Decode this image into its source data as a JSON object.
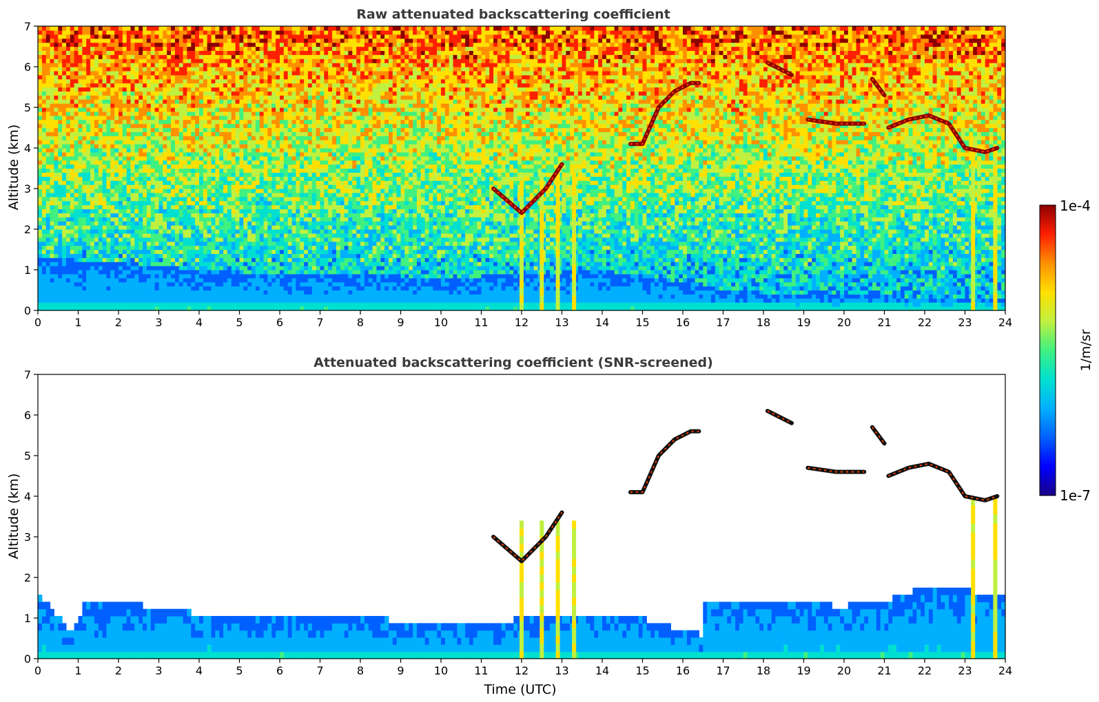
{
  "chart_data": [
    {
      "type": "heatmap",
      "title": "Raw attenuated backscattering coefficient",
      "xlabel": "",
      "ylabel": "Altitude (km)",
      "xlim": [
        0,
        24
      ],
      "ylim": [
        0,
        7
      ],
      "x_ticks": [
        "0",
        "1",
        "2",
        "3",
        "4",
        "5",
        "6",
        "7",
        "8",
        "9",
        "10",
        "11",
        "12",
        "13",
        "14",
        "15",
        "16",
        "17",
        "18",
        "19",
        "20",
        "21",
        "22",
        "23",
        "24"
      ],
      "y_ticks": [
        "0",
        "1",
        "2",
        "3",
        "4",
        "5",
        "6",
        "7"
      ],
      "features": {
        "boundary_layer_top_km": [
          [
            0,
            1.3
          ],
          [
            2,
            1.2
          ],
          [
            4,
            1.0
          ],
          [
            6,
            0.9
          ],
          [
            8,
            0.9
          ],
          [
            10,
            0.8
          ],
          [
            12,
            0.9
          ],
          [
            14,
            1.0
          ],
          [
            16,
            0.7
          ],
          [
            17,
            0.5
          ],
          [
            19,
            0.4
          ],
          [
            21,
            0.4
          ],
          [
            22,
            0.3
          ],
          [
            24,
            0.3
          ]
        ],
        "clouds": [
          {
            "x": [
              11.3,
              12.0,
              12.6,
              13.0
            ],
            "y": [
              3.0,
              2.4,
              3.0,
              3.6
            ]
          },
          {
            "x": [
              14.7,
              15.0,
              15.4,
              15.8,
              16.2,
              16.4
            ],
            "y": [
              4.1,
              4.1,
              5.0,
              5.4,
              5.6,
              5.6
            ]
          },
          {
            "x": [
              18.1,
              18.7
            ],
            "y": [
              6.1,
              5.8
            ]
          },
          {
            "x": [
              19.1,
              19.8,
              20.5
            ],
            "y": [
              4.7,
              4.6,
              4.6
            ]
          },
          {
            "x": [
              21.1,
              21.6,
              22.1,
              22.6,
              23.0,
              23.5,
              23.8
            ],
            "y": [
              4.5,
              4.7,
              4.8,
              4.6,
              4.0,
              3.9,
              4.0
            ]
          },
          {
            "x": [
              20.7,
              21.0
            ],
            "y": [
              5.7,
              5.3
            ]
          }
        ],
        "precipitation_streaks_hours": [
          12.0,
          12.5,
          12.9,
          13.3,
          23.2,
          23.75
        ]
      }
    },
    {
      "type": "heatmap",
      "title": "Attenuated backscattering coefficient (SNR-screened)",
      "xlabel": "Time (UTC)",
      "ylabel": "Altitude (km)",
      "xlim": [
        0,
        24
      ],
      "ylim": [
        0,
        7
      ],
      "x_ticks": [
        "0",
        "1",
        "2",
        "3",
        "4",
        "5",
        "6",
        "7",
        "8",
        "9",
        "10",
        "11",
        "12",
        "13",
        "14",
        "15",
        "16",
        "17",
        "18",
        "19",
        "20",
        "21",
        "22",
        "23",
        "24"
      ],
      "y_ticks": [
        "0",
        "1",
        "2",
        "3",
        "4",
        "5",
        "6",
        "7"
      ],
      "features": {
        "boundary_layer_top_km": [
          [
            0,
            1.6
          ],
          [
            0.8,
            0.7
          ],
          [
            1.2,
            1.4
          ],
          [
            2,
            1.4
          ],
          [
            4,
            1.1
          ],
          [
            6,
            1.1
          ],
          [
            8,
            1.0
          ],
          [
            10,
            0.9
          ],
          [
            11,
            0.8
          ],
          [
            12,
            1.0
          ],
          [
            14,
            1.1
          ],
          [
            15,
            1.0
          ],
          [
            16,
            0.7
          ],
          [
            16.45,
            0.6
          ],
          [
            16.5,
            1.4
          ],
          [
            18,
            1.4
          ],
          [
            20,
            1.3
          ],
          [
            21.3,
            1.5
          ],
          [
            22,
            1.8
          ],
          [
            23,
            1.7
          ],
          [
            24,
            1.5
          ]
        ]
      }
    }
  ],
  "colorbar": {
    "label": "1/m/sr",
    "min_label": "1e-7",
    "max_label": "1e-4",
    "scale": "log",
    "colormap": [
      "#1a0087",
      "#0000ff",
      "#0060ff",
      "#00b0ff",
      "#00e0d0",
      "#40f080",
      "#c0f040",
      "#ffe000",
      "#ff9000",
      "#ff2000",
      "#8b0000"
    ]
  }
}
